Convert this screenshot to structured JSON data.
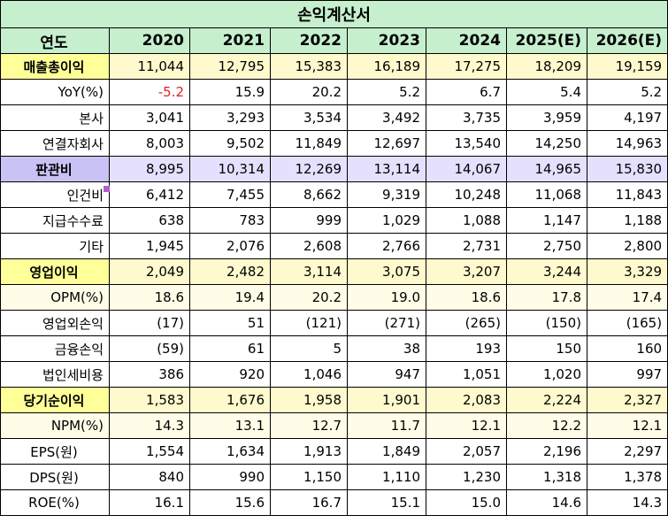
{
  "title": "손익계산서",
  "header": {
    "label": "연도",
    "years": [
      "2020",
      "2021",
      "2022",
      "2023",
      "2024",
      "2025(E)",
      "2026(E)"
    ]
  },
  "rows": [
    {
      "label": "매출총이익",
      "style": "yellow",
      "values": [
        "11,044",
        "12,795",
        "15,383",
        "16,189",
        "17,275",
        "18,209",
        "19,159"
      ]
    },
    {
      "label": "YoY(%)",
      "style": "plain",
      "values": [
        "-5.2",
        "15.9",
        "20.2",
        "5.2",
        "6.7",
        "5.4",
        "5.2"
      ]
    },
    {
      "label": "본사",
      "style": "plain",
      "values": [
        "3,041",
        "3,293",
        "3,534",
        "3,492",
        "3,735",
        "3,959",
        "4,197"
      ]
    },
    {
      "label": "연결자회사",
      "style": "plain",
      "values": [
        "8,003",
        "9,502",
        "11,849",
        "12,697",
        "13,540",
        "14,250",
        "14,963"
      ]
    },
    {
      "label": "판관비",
      "style": "purple",
      "values": [
        "8,995",
        "10,314",
        "12,269",
        "13,114",
        "14,067",
        "14,965",
        "15,830"
      ]
    },
    {
      "label": "인건비",
      "style": "plain",
      "values": [
        "6,412",
        "7,455",
        "8,662",
        "9,319",
        "10,248",
        "11,068",
        "11,843"
      ]
    },
    {
      "label": "지급수수료",
      "style": "plain",
      "values": [
        "638",
        "783",
        "999",
        "1,029",
        "1,088",
        "1,147",
        "1,188"
      ]
    },
    {
      "label": "기타",
      "style": "plain",
      "values": [
        "1,945",
        "2,076",
        "2,608",
        "2,766",
        "2,731",
        "2,750",
        "2,800"
      ]
    },
    {
      "label": "영업이익",
      "style": "yellow",
      "values": [
        "2,049",
        "2,482",
        "3,114",
        "3,075",
        "3,207",
        "3,244",
        "3,329"
      ]
    },
    {
      "label": "OPM(%)",
      "style": "yellow-sub",
      "values": [
        "18.6",
        "19.4",
        "20.2",
        "19.0",
        "18.6",
        "17.8",
        "17.4"
      ]
    },
    {
      "label": "영업외손익",
      "style": "plain",
      "values": [
        "(17)",
        "51",
        "(121)",
        "(271)",
        "(265)",
        "(150)",
        "(165)"
      ]
    },
    {
      "label": "금융손익",
      "style": "plain",
      "values": [
        "(59)",
        "61",
        "5",
        "38",
        "193",
        "150",
        "160"
      ]
    },
    {
      "label": "법인세비용",
      "style": "plain",
      "values": [
        "386",
        "920",
        "1,046",
        "947",
        "1,051",
        "1,020",
        "997"
      ]
    },
    {
      "label": "당기순이익",
      "style": "yellow",
      "values": [
        "1,583",
        "1,676",
        "1,958",
        "1,901",
        "2,083",
        "2,224",
        "2,327"
      ]
    },
    {
      "label": "NPM(%)",
      "style": "yellow-sub",
      "values": [
        "14.3",
        "13.1",
        "12.7",
        "11.7",
        "12.1",
        "12.2",
        "12.1"
      ]
    },
    {
      "label": "EPS(원)",
      "style": "plain",
      "values": [
        "1,554",
        "1,634",
        "1,913",
        "1,849",
        "2,057",
        "2,196",
        "2,297"
      ]
    },
    {
      "label": "DPS(원)",
      "style": "plain",
      "values": [
        "840",
        "990",
        "1,150",
        "1,110",
        "1,230",
        "1,318",
        "1,378"
      ]
    },
    {
      "label": "ROE(%)",
      "style": "plain",
      "values": [
        "16.1",
        "15.6",
        "16.7",
        "15.1",
        "15.0",
        "14.6",
        "14.3"
      ]
    }
  ],
  "colors": {
    "header_green": "#c6efce",
    "highlight_yellow": "#ffff99",
    "highlight_purple": "#c9c3f5",
    "negative_red": "#e02020"
  }
}
